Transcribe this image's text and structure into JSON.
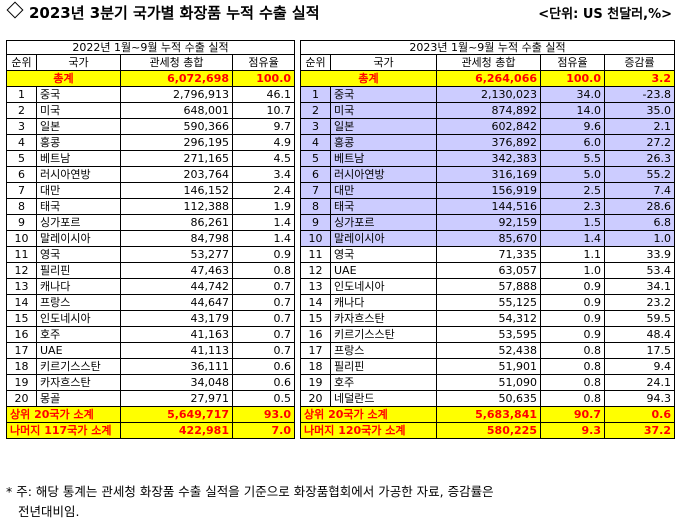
{
  "title": "2023년 3분기 국가별 화장품 누적 수출 실적",
  "unit": "<단위: US 천달러,%>",
  "left": {
    "period": "2022년  1월~9월 누적 수출 실적",
    "headers": [
      "순위",
      "국가",
      "관세청 총합",
      "점유율"
    ],
    "total": {
      "label": "총계",
      "amount": "6,072,698",
      "share": "100.0"
    },
    "rows": [
      {
        "rank": "1",
        "country": "중국",
        "amount": "2,796,913",
        "share": "46.1"
      },
      {
        "rank": "2",
        "country": "미국",
        "amount": "648,001",
        "share": "10.7"
      },
      {
        "rank": "3",
        "country": "일본",
        "amount": "590,366",
        "share": "9.7"
      },
      {
        "rank": "4",
        "country": "홍콩",
        "amount": "296,195",
        "share": "4.9"
      },
      {
        "rank": "5",
        "country": "베트남",
        "amount": "271,165",
        "share": "4.5"
      },
      {
        "rank": "6",
        "country": "러시아연방",
        "amount": "203,764",
        "share": "3.4"
      },
      {
        "rank": "7",
        "country": "대만",
        "amount": "146,152",
        "share": "2.4"
      },
      {
        "rank": "8",
        "country": "태국",
        "amount": "112,388",
        "share": "1.9"
      },
      {
        "rank": "9",
        "country": "싱가포르",
        "amount": "86,261",
        "share": "1.4"
      },
      {
        "rank": "10",
        "country": "말레이시아",
        "amount": "84,798",
        "share": "1.4"
      },
      {
        "rank": "11",
        "country": "영국",
        "amount": "53,277",
        "share": "0.9"
      },
      {
        "rank": "12",
        "country": "필리핀",
        "amount": "47,463",
        "share": "0.8"
      },
      {
        "rank": "13",
        "country": "캐나다",
        "amount": "44,742",
        "share": "0.7"
      },
      {
        "rank": "14",
        "country": "프랑스",
        "amount": "44,647",
        "share": "0.7"
      },
      {
        "rank": "15",
        "country": "인도네시아",
        "amount": "43,179",
        "share": "0.7"
      },
      {
        "rank": "16",
        "country": "호주",
        "amount": "41,163",
        "share": "0.7"
      },
      {
        "rank": "17",
        "country": "UAE",
        "amount": "41,113",
        "share": "0.7"
      },
      {
        "rank": "18",
        "country": "키르기스스탄",
        "amount": "36,111",
        "share": "0.6"
      },
      {
        "rank": "19",
        "country": "카자흐스탄",
        "amount": "34,048",
        "share": "0.6"
      },
      {
        "rank": "20",
        "country": "몽골",
        "amount": "27,971",
        "share": "0.5"
      }
    ],
    "top20": {
      "label": "상위 20국가 소계",
      "amount": "5,649,717",
      "share": "93.0"
    },
    "rest": {
      "label": "나머지 117국가 소계",
      "amount": "422,981",
      "share": "7.0"
    }
  },
  "right": {
    "period": "2023년  1월~9월 누적 수출 실적",
    "headers": [
      "순위",
      "국가",
      "관세청 총합",
      "점유율",
      "증감률"
    ],
    "total": {
      "label": "총계",
      "amount": "6,264,066",
      "share": "100.0",
      "growth": "3.2"
    },
    "rows": [
      {
        "rank": "1",
        "country": "중국",
        "amount": "2,130,023",
        "share": "34.0",
        "growth": "-23.8"
      },
      {
        "rank": "2",
        "country": "미국",
        "amount": "874,892",
        "share": "14.0",
        "growth": "35.0"
      },
      {
        "rank": "3",
        "country": "일본",
        "amount": "602,842",
        "share": "9.6",
        "growth": "2.1"
      },
      {
        "rank": "4",
        "country": "홍콩",
        "amount": "376,892",
        "share": "6.0",
        "growth": "27.2"
      },
      {
        "rank": "5",
        "country": "베트남",
        "amount": "342,383",
        "share": "5.5",
        "growth": "26.3"
      },
      {
        "rank": "6",
        "country": "러시아연방",
        "amount": "316,169",
        "share": "5.0",
        "growth": "55.2"
      },
      {
        "rank": "7",
        "country": "대만",
        "amount": "156,919",
        "share": "2.5",
        "growth": "7.4"
      },
      {
        "rank": "8",
        "country": "태국",
        "amount": "144,516",
        "share": "2.3",
        "growth": "28.6"
      },
      {
        "rank": "9",
        "country": "싱가포르",
        "amount": "92,159",
        "share": "1.5",
        "growth": "6.8"
      },
      {
        "rank": "10",
        "country": "말레이시아",
        "amount": "85,670",
        "share": "1.4",
        "growth": "1.0"
      },
      {
        "rank": "11",
        "country": "영국",
        "amount": "71,335",
        "share": "1.1",
        "growth": "33.9"
      },
      {
        "rank": "12",
        "country": "UAE",
        "amount": "63,057",
        "share": "1.0",
        "growth": "53.4"
      },
      {
        "rank": "13",
        "country": "인도네시아",
        "amount": "57,888",
        "share": "0.9",
        "growth": "34.1"
      },
      {
        "rank": "14",
        "country": "캐나다",
        "amount": "55,125",
        "share": "0.9",
        "growth": "23.2"
      },
      {
        "rank": "15",
        "country": "카자흐스탄",
        "amount": "54,312",
        "share": "0.9",
        "growth": "59.5"
      },
      {
        "rank": "16",
        "country": "키르기스스탄",
        "amount": "53,595",
        "share": "0.9",
        "growth": "48.4"
      },
      {
        "rank": "17",
        "country": "프랑스",
        "amount": "52,438",
        "share": "0.8",
        "growth": "17.5"
      },
      {
        "rank": "18",
        "country": "필리핀",
        "amount": "51,901",
        "share": "0.8",
        "growth": "9.4"
      },
      {
        "rank": "19",
        "country": "호주",
        "amount": "51,090",
        "share": "0.8",
        "growth": "24.1"
      },
      {
        "rank": "20",
        "country": "네덜란드",
        "amount": "50,635",
        "share": "0.8",
        "growth": "94.3"
      }
    ],
    "top20": {
      "label": "상위 20국가 소계",
      "amount": "5,683,841",
      "share": "90.7",
      "growth": "0.6"
    },
    "rest": {
      "label": "나머지 120국가 소계",
      "amount": "580,225",
      "share": "9.3",
      "growth": "37.2"
    }
  },
  "footnote": {
    "line1": "* 주: 해당 통계는 관세청 화장품 수출 실적을 기준으로 화장품협회에서 가공한 자료, 증감률은",
    "line2": "전년대비임."
  },
  "colors": {
    "highlight_yellow": "#ffff00",
    "highlight_text": "#ff0000",
    "top10_row": "#ccccff"
  },
  "icons": {
    "title": "diamond-outline-icon"
  }
}
